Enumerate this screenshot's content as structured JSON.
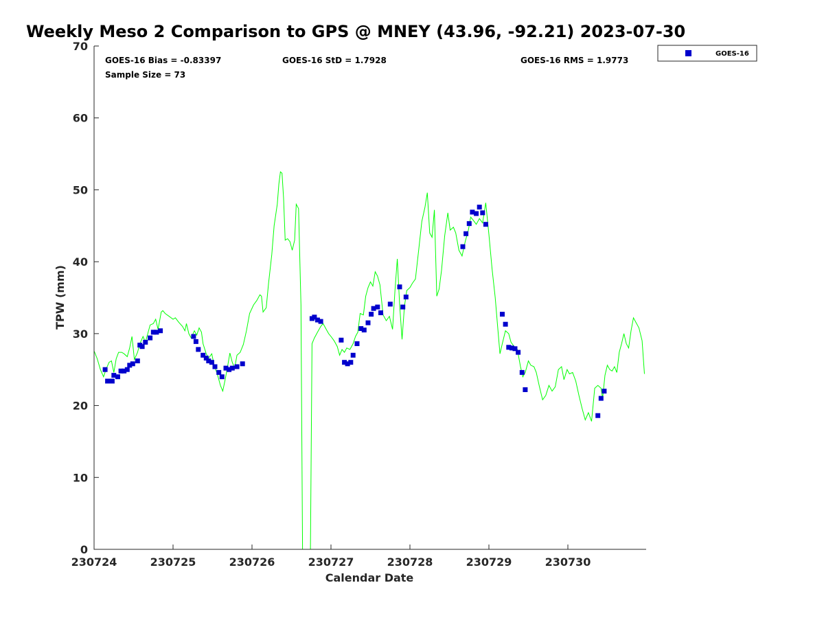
{
  "chart_data": {
    "type": "scatter",
    "title": "Weekly Meso 2 Comparison to GPS @ MNEY (43.96, -92.21) 2023-07-30",
    "xlabel": "Calendar Date",
    "ylabel": "TPW (mm)",
    "x_ticks": [
      "230724",
      "230725",
      "230726",
      "230727",
      "230728",
      "230729",
      "230730"
    ],
    "xlim": [
      0,
      7
    ],
    "ylim": [
      0,
      70
    ],
    "y_ticks": [
      0,
      10,
      20,
      30,
      40,
      50,
      60,
      70
    ],
    "grid": false,
    "legend_position": "top-right",
    "x_unit": "days since 230724 00Z",
    "stats": {
      "bias": "GOES-16 Bias = -0.83397",
      "std": "GOES-16 StD = 1.7928",
      "rms": "GOES-16 RMS = 1.9773",
      "sample_size": "Sample Size = 73"
    },
    "colors": {
      "goes": "#0000cc",
      "gps": "#00ff00",
      "axes": "#262626"
    },
    "series": [
      {
        "name": "GOES-16",
        "kind": "scatter",
        "points": [
          [
            0.14,
            25.0
          ],
          [
            0.17,
            23.4
          ],
          [
            0.23,
            23.4
          ],
          [
            0.25,
            24.2
          ],
          [
            0.3,
            24.0
          ],
          [
            0.34,
            24.8
          ],
          [
            0.38,
            24.8
          ],
          [
            0.42,
            25.0
          ],
          [
            0.45,
            25.6
          ],
          [
            0.49,
            25.8
          ],
          [
            0.55,
            26.2
          ],
          [
            0.58,
            28.4
          ],
          [
            0.61,
            28.2
          ],
          [
            0.65,
            28.8
          ],
          [
            0.71,
            29.4
          ],
          [
            0.75,
            30.2
          ],
          [
            0.79,
            30.2
          ],
          [
            0.84,
            30.4
          ],
          [
            1.26,
            29.6
          ],
          [
            1.29,
            28.9
          ],
          [
            1.32,
            27.8
          ],
          [
            1.38,
            27.0
          ],
          [
            1.42,
            26.6
          ],
          [
            1.45,
            26.2
          ],
          [
            1.49,
            26.0
          ],
          [
            1.53,
            25.4
          ],
          [
            1.58,
            24.6
          ],
          [
            1.62,
            24.0
          ],
          [
            1.67,
            25.2
          ],
          [
            1.71,
            25.0
          ],
          [
            1.75,
            25.2
          ],
          [
            1.81,
            25.4
          ],
          [
            1.88,
            25.8
          ],
          [
            2.76,
            32.1
          ],
          [
            2.79,
            32.3
          ],
          [
            2.83,
            31.9
          ],
          [
            2.87,
            31.7
          ],
          [
            3.13,
            29.1
          ],
          [
            3.17,
            26.0
          ],
          [
            3.21,
            25.8
          ],
          [
            3.25,
            26.0
          ],
          [
            3.28,
            27.0
          ],
          [
            3.33,
            28.6
          ],
          [
            3.38,
            30.7
          ],
          [
            3.42,
            30.5
          ],
          [
            3.47,
            31.5
          ],
          [
            3.51,
            32.7
          ],
          [
            3.54,
            33.5
          ],
          [
            3.59,
            33.7
          ],
          [
            3.63,
            32.9
          ],
          [
            3.75,
            34.1
          ],
          [
            3.87,
            36.5
          ],
          [
            3.91,
            33.7
          ],
          [
            3.95,
            35.1
          ],
          [
            4.67,
            42.1
          ],
          [
            4.71,
            43.9
          ],
          [
            4.75,
            45.3
          ],
          [
            4.79,
            46.9
          ],
          [
            4.84,
            46.7
          ],
          [
            4.88,
            47.6
          ],
          [
            4.92,
            46.8
          ],
          [
            4.96,
            45.2
          ],
          [
            5.17,
            32.7
          ],
          [
            5.21,
            31.3
          ],
          [
            5.25,
            28.1
          ],
          [
            5.29,
            28.0
          ],
          [
            5.33,
            27.9
          ],
          [
            5.37,
            27.4
          ],
          [
            5.42,
            24.6
          ],
          [
            5.46,
            22.2
          ],
          [
            6.38,
            18.6
          ],
          [
            6.42,
            21.0
          ],
          [
            6.46,
            22.0
          ]
        ]
      },
      {
        "name": "GPS",
        "kind": "line",
        "points": [
          [
            0.0,
            27.6
          ],
          [
            0.04,
            26.5
          ],
          [
            0.08,
            25.0
          ],
          [
            0.12,
            24.0
          ],
          [
            0.15,
            25.0
          ],
          [
            0.19,
            26.0
          ],
          [
            0.22,
            26.2
          ],
          [
            0.25,
            24.6
          ],
          [
            0.28,
            26.5
          ],
          [
            0.31,
            27.4
          ],
          [
            0.35,
            27.4
          ],
          [
            0.38,
            27.2
          ],
          [
            0.42,
            26.8
          ],
          [
            0.45,
            28.0
          ],
          [
            0.48,
            29.6
          ],
          [
            0.51,
            26.4
          ],
          [
            0.55,
            27.4
          ],
          [
            0.58,
            28.6
          ],
          [
            0.62,
            29.6
          ],
          [
            0.65,
            28.8
          ],
          [
            0.68,
            30.0
          ],
          [
            0.71,
            31.2
          ],
          [
            0.75,
            31.4
          ],
          [
            0.78,
            32.0
          ],
          [
            0.81,
            30.6
          ],
          [
            0.85,
            33.0
          ],
          [
            0.87,
            33.2
          ],
          [
            0.9,
            32.8
          ],
          [
            0.95,
            32.4
          ],
          [
            1.0,
            32.0
          ],
          [
            1.03,
            32.2
          ],
          [
            1.07,
            31.6
          ],
          [
            1.12,
            31.0
          ],
          [
            1.15,
            30.4
          ],
          [
            1.17,
            31.4
          ],
          [
            1.2,
            30.0
          ],
          [
            1.23,
            29.4
          ],
          [
            1.27,
            30.4
          ],
          [
            1.3,
            29.8
          ],
          [
            1.33,
            30.8
          ],
          [
            1.36,
            30.2
          ],
          [
            1.38,
            28.6
          ],
          [
            1.42,
            27.2
          ],
          [
            1.45,
            26.6
          ],
          [
            1.49,
            27.2
          ],
          [
            1.52,
            25.6
          ],
          [
            1.56,
            24.4
          ],
          [
            1.6,
            22.8
          ],
          [
            1.63,
            22.0
          ],
          [
            1.66,
            23.6
          ],
          [
            1.69,
            25.4
          ],
          [
            1.72,
            27.3
          ],
          [
            1.75,
            26.0
          ],
          [
            1.78,
            25.2
          ],
          [
            1.81,
            27.0
          ],
          [
            1.85,
            27.4
          ],
          [
            1.89,
            28.5
          ],
          [
            1.93,
            30.4
          ],
          [
            1.97,
            32.8
          ],
          [
            2.02,
            34.0
          ],
          [
            2.06,
            34.6
          ],
          [
            2.1,
            35.4
          ],
          [
            2.12,
            35.2
          ],
          [
            2.14,
            33.0
          ],
          [
            2.18,
            33.6
          ],
          [
            2.21,
            37.0
          ],
          [
            2.25,
            41.0
          ],
          [
            2.28,
            45.0
          ],
          [
            2.32,
            48.0
          ],
          [
            2.34,
            50.8
          ],
          [
            2.36,
            52.5
          ],
          [
            2.38,
            52.3
          ],
          [
            2.4,
            48.8
          ],
          [
            2.42,
            43.0
          ],
          [
            2.45,
            43.2
          ],
          [
            2.48,
            42.8
          ],
          [
            2.51,
            41.6
          ],
          [
            2.54,
            43.0
          ],
          [
            2.56,
            48.0
          ],
          [
            2.59,
            47.4
          ],
          [
            2.62,
            34.0
          ],
          [
            2.64,
            0.0
          ],
          [
            2.68,
            0.0
          ],
          [
            2.72,
            0.0
          ],
          [
            2.74,
            0.0
          ],
          [
            2.76,
            28.6
          ],
          [
            2.79,
            29.4
          ],
          [
            2.83,
            30.2
          ],
          [
            2.87,
            31.0
          ],
          [
            2.9,
            31.4
          ],
          [
            2.94,
            30.6
          ],
          [
            2.97,
            30.0
          ],
          [
            3.0,
            29.6
          ],
          [
            3.04,
            29.0
          ],
          [
            3.08,
            28.2
          ],
          [
            3.11,
            27.0
          ],
          [
            3.14,
            27.8
          ],
          [
            3.17,
            27.4
          ],
          [
            3.2,
            28.0
          ],
          [
            3.24,
            27.8
          ],
          [
            3.28,
            28.6
          ],
          [
            3.31,
            29.6
          ],
          [
            3.34,
            30.2
          ],
          [
            3.37,
            32.8
          ],
          [
            3.41,
            32.6
          ],
          [
            3.44,
            35.2
          ],
          [
            3.47,
            36.4
          ],
          [
            3.5,
            37.2
          ],
          [
            3.53,
            36.6
          ],
          [
            3.56,
            38.6
          ],
          [
            3.59,
            38.0
          ],
          [
            3.62,
            36.8
          ],
          [
            3.66,
            32.6
          ],
          [
            3.7,
            31.8
          ],
          [
            3.74,
            32.4
          ],
          [
            3.78,
            30.6
          ],
          [
            3.81,
            36.0
          ],
          [
            3.84,
            40.4
          ],
          [
            3.87,
            34.0
          ],
          [
            3.9,
            29.2
          ],
          [
            3.93,
            33.8
          ],
          [
            3.96,
            36.0
          ],
          [
            4.0,
            36.4
          ],
          [
            4.03,
            37.0
          ],
          [
            4.07,
            37.6
          ],
          [
            4.11,
            41.6
          ],
          [
            4.15,
            45.6
          ],
          [
            4.19,
            47.6
          ],
          [
            4.22,
            49.6
          ],
          [
            4.25,
            44.0
          ],
          [
            4.28,
            43.4
          ],
          [
            4.31,
            47.2
          ],
          [
            4.34,
            35.2
          ],
          [
            4.37,
            36.2
          ],
          [
            4.4,
            38.8
          ],
          [
            4.44,
            43.6
          ],
          [
            4.48,
            46.8
          ],
          [
            4.51,
            44.4
          ],
          [
            4.55,
            44.8
          ],
          [
            4.58,
            44.0
          ],
          [
            4.62,
            41.6
          ],
          [
            4.66,
            40.8
          ],
          [
            4.7,
            42.8
          ],
          [
            4.74,
            44.4
          ],
          [
            4.77,
            46.2
          ],
          [
            4.8,
            45.8
          ],
          [
            4.84,
            45.2
          ],
          [
            4.88,
            46.0
          ],
          [
            4.92,
            45.4
          ],
          [
            4.96,
            48.2
          ],
          [
            5.0,
            43.8
          ],
          [
            5.04,
            39.0
          ],
          [
            5.08,
            35.0
          ],
          [
            5.11,
            31.0
          ],
          [
            5.14,
            27.2
          ],
          [
            5.17,
            28.6
          ],
          [
            5.21,
            30.4
          ],
          [
            5.25,
            30.0
          ],
          [
            5.28,
            28.8
          ],
          [
            5.32,
            28.2
          ],
          [
            5.36,
            27.8
          ],
          [
            5.4,
            25.4
          ],
          [
            5.43,
            24.0
          ],
          [
            5.46,
            24.6
          ],
          [
            5.5,
            26.2
          ],
          [
            5.53,
            25.6
          ],
          [
            5.57,
            25.4
          ],
          [
            5.6,
            24.6
          ],
          [
            5.64,
            22.6
          ],
          [
            5.68,
            20.8
          ],
          [
            5.72,
            21.4
          ],
          [
            5.76,
            22.8
          ],
          [
            5.8,
            22.0
          ],
          [
            5.84,
            22.6
          ],
          [
            5.88,
            25.0
          ],
          [
            5.92,
            25.4
          ],
          [
            5.95,
            23.6
          ],
          [
            5.99,
            25.0
          ],
          [
            6.02,
            24.4
          ],
          [
            6.06,
            24.6
          ],
          [
            6.1,
            23.4
          ],
          [
            6.14,
            21.4
          ],
          [
            6.18,
            19.6
          ],
          [
            6.22,
            18.0
          ],
          [
            6.26,
            19.0
          ],
          [
            6.3,
            17.8
          ],
          [
            6.34,
            22.4
          ],
          [
            6.38,
            22.8
          ],
          [
            6.42,
            22.4
          ],
          [
            6.44,
            21.0
          ],
          [
            6.47,
            24.2
          ],
          [
            6.5,
            25.6
          ],
          [
            6.53,
            25.0
          ],
          [
            6.56,
            24.8
          ],
          [
            6.59,
            25.4
          ],
          [
            6.62,
            24.6
          ],
          [
            6.65,
            27.4
          ],
          [
            6.68,
            28.6
          ],
          [
            6.71,
            30.0
          ],
          [
            6.74,
            28.6
          ],
          [
            6.77,
            28.0
          ],
          [
            6.8,
            30.4
          ],
          [
            6.83,
            32.2
          ],
          [
            6.86,
            31.6
          ],
          [
            6.9,
            30.8
          ],
          [
            6.94,
            29.0
          ],
          [
            6.97,
            24.4
          ]
        ]
      }
    ]
  }
}
